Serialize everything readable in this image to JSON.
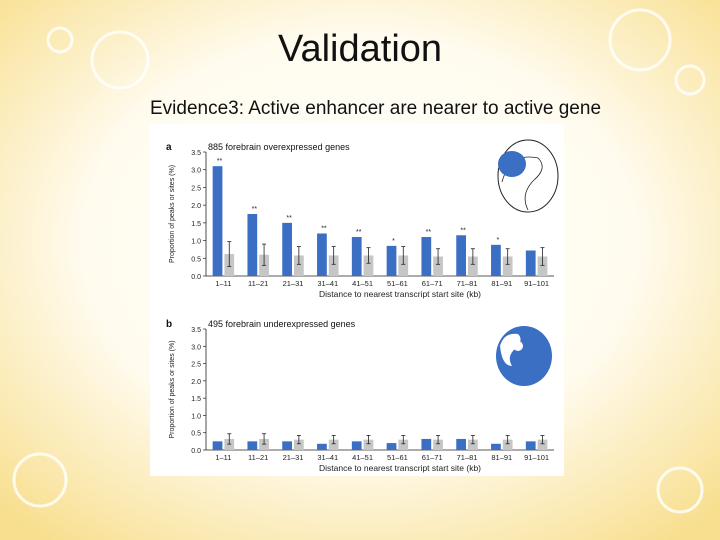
{
  "slide": {
    "title": "Validation",
    "subtitle": "Evidence3: Active enhancer are nearer to active gene"
  },
  "colors": {
    "blue": "#3a6fc4",
    "grey": "#c6c6c6",
    "background": "#fdf6e0",
    "accent": "#f3cf58"
  },
  "chart_data": [
    {
      "type": "bar",
      "panel_label": "a",
      "title": "885 forebrain overexpressed genes",
      "xlabel": "Distance to nearest transcript start site (kb)",
      "ylabel": "Proportion of peaks or sites (%)",
      "ylim": [
        0,
        3.5
      ],
      "yticks": [
        "0.0",
        "0.5",
        "1.0",
        "1.5",
        "2.0",
        "2.5",
        "3.0",
        "3.5"
      ],
      "categories": [
        "1–11",
        "11–21",
        "21–31",
        "31–41",
        "41–51",
        "51–61",
        "61–71",
        "71–81",
        "81–91",
        "91–101"
      ],
      "series": [
        {
          "values": [
            3.1,
            1.75,
            1.5,
            1.2,
            1.1,
            0.85,
            1.1,
            1.15,
            0.88,
            0.72
          ]
        },
        {
          "values": [
            0.62,
            0.6,
            0.58,
            0.58,
            0.58,
            0.58,
            0.55,
            0.55,
            0.55,
            0.55
          ],
          "errors": [
            0.35,
            0.3,
            0.25,
            0.25,
            0.22,
            0.25,
            0.22,
            0.22,
            0.22,
            0.25
          ]
        }
      ],
      "annotations": [
        "**",
        "**",
        "**",
        "**",
        "**",
        "*",
        "**",
        "**",
        "*",
        ""
      ],
      "icon": "embryo-forebrain-icon"
    },
    {
      "type": "bar",
      "panel_label": "b",
      "title": "495 forebrain underexpressed genes",
      "xlabel": "Distance to nearest transcript start site (kb)",
      "ylabel": "Proportion of peaks or sites (%)",
      "ylim": [
        0,
        3.5
      ],
      "yticks": [
        "0.0",
        "0.5",
        "1.0",
        "1.5",
        "2.0",
        "2.5",
        "3.0",
        "3.5"
      ],
      "categories": [
        "1–11",
        "11–21",
        "21–31",
        "31–41",
        "41–51",
        "51–61",
        "61–71",
        "71–81",
        "81–91",
        "91–101"
      ],
      "series": [
        {
          "values": [
            0.25,
            0.25,
            0.25,
            0.18,
            0.25,
            0.2,
            0.32,
            0.32,
            0.18,
            0.25
          ]
        },
        {
          "values": [
            0.32,
            0.32,
            0.3,
            0.3,
            0.3,
            0.3,
            0.3,
            0.3,
            0.3,
            0.3
          ],
          "errors": [
            0.15,
            0.15,
            0.12,
            0.12,
            0.12,
            0.12,
            0.12,
            0.12,
            0.12,
            0.12
          ]
        }
      ],
      "annotations": [
        "",
        "",
        "",
        "",
        "",
        "",
        "",
        "",
        "",
        ""
      ],
      "icon": "embryo-whole-icon"
    }
  ]
}
